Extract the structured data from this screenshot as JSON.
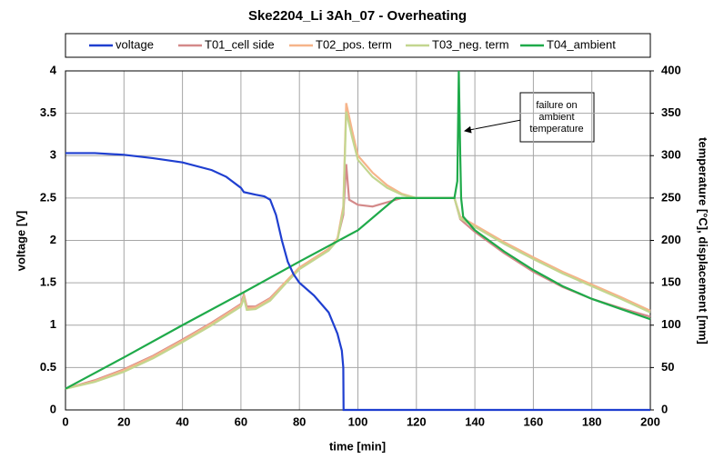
{
  "chart_data": {
    "type": "line",
    "title": "Ske2204_Li  3Ah_07 - Overheating",
    "x_label": "time [min]",
    "y_label": "voltage [V]",
    "y2_label": "temperature [°C], displacement [mm]",
    "xlim": [
      0,
      200
    ],
    "xticks": [
      0,
      20,
      40,
      60,
      80,
      100,
      120,
      140,
      160,
      180,
      200
    ],
    "ylim": [
      0,
      4
    ],
    "yticks": [
      0,
      0.5,
      1,
      1.5,
      2,
      2.5,
      3,
      3.5,
      4
    ],
    "y2lim": [
      0,
      400
    ],
    "y2ticks": [
      0,
      50,
      100,
      150,
      200,
      250,
      300,
      350,
      400
    ],
    "grid": true,
    "legend": "top",
    "annotation": [
      "failure on",
      "ambient",
      "temperature"
    ],
    "series": [
      {
        "name": "voltage",
        "color": "#1f3fd0",
        "x": [
          0,
          10,
          20,
          30,
          40,
          50,
          55,
          60,
          61,
          65,
          68,
          70,
          72,
          74,
          76,
          78,
          80,
          85,
          90,
          93,
          94.5,
          95,
          95.1,
          100,
          200
        ],
        "values": [
          3.03,
          3.03,
          3.01,
          2.97,
          2.92,
          2.83,
          2.75,
          2.62,
          2.57,
          2.54,
          2.52,
          2.48,
          2.3,
          2.0,
          1.75,
          1.6,
          1.5,
          1.35,
          1.15,
          0.9,
          0.7,
          0.5,
          0,
          0,
          0
        ]
      },
      {
        "name": "T01_cell side",
        "color": "#d48a8a",
        "axis": "y2",
        "x": [
          0,
          10,
          20,
          30,
          40,
          50,
          60,
          61,
          62,
          65,
          70,
          75,
          80,
          90,
          93,
          95,
          96,
          97,
          100,
          105,
          110,
          115,
          133,
          135,
          140,
          150,
          160,
          170,
          180,
          190,
          200
        ],
        "values": [
          25,
          35,
          48,
          64,
          83,
          103,
          125,
          136,
          122,
          122,
          132,
          150,
          168,
          190,
          202,
          230,
          290,
          248,
          242,
          240,
          245,
          250,
          250,
          225,
          210,
          185,
          163,
          145,
          131,
          120,
          110
        ]
      },
      {
        "name": "T02_pos. term",
        "color": "#f6b48a",
        "axis": "y2",
        "x": [
          0,
          10,
          20,
          30,
          40,
          50,
          60,
          61,
          62,
          65,
          70,
          75,
          80,
          90,
          93,
          95,
          96,
          98,
          100,
          105,
          110,
          115,
          120,
          133,
          135,
          140,
          150,
          160,
          170,
          180,
          190,
          200
        ],
        "values": [
          25,
          34,
          47,
          63,
          82,
          102,
          124,
          134,
          120,
          121,
          131,
          150,
          168,
          190,
          202,
          240,
          362,
          330,
          300,
          280,
          265,
          255,
          250,
          250,
          228,
          218,
          198,
          180,
          163,
          148,
          133,
          117
        ]
      },
      {
        "name": "T03_neg. term",
        "color": "#c3d68f",
        "axis": "y2",
        "x": [
          0,
          10,
          20,
          30,
          40,
          50,
          60,
          61,
          62,
          65,
          70,
          75,
          80,
          90,
          93,
          95,
          96,
          98,
          100,
          105,
          110,
          115,
          120,
          133,
          135,
          140,
          150,
          160,
          170,
          180,
          190,
          200
        ],
        "values": [
          25,
          33,
          45,
          61,
          80,
          100,
          122,
          132,
          118,
          119,
          129,
          148,
          166,
          188,
          200,
          235,
          352,
          322,
          295,
          275,
          262,
          254,
          250,
          250,
          226,
          216,
          196,
          178,
          161,
          146,
          131,
          115
        ]
      },
      {
        "name": "T04_ambient",
        "color": "#1faa4a",
        "axis": "y2",
        "x": [
          0,
          20,
          40,
          60,
          80,
          100,
          113,
          120,
          133,
          134,
          134.5,
          135,
          135.3,
          136,
          140,
          150,
          160,
          170,
          180,
          190,
          200
        ],
        "values": [
          25,
          62,
          100,
          137,
          175,
          212,
          250,
          250,
          250,
          270,
          400,
          300,
          250,
          228,
          212,
          187,
          165,
          146,
          131,
          119,
          107
        ]
      }
    ]
  }
}
